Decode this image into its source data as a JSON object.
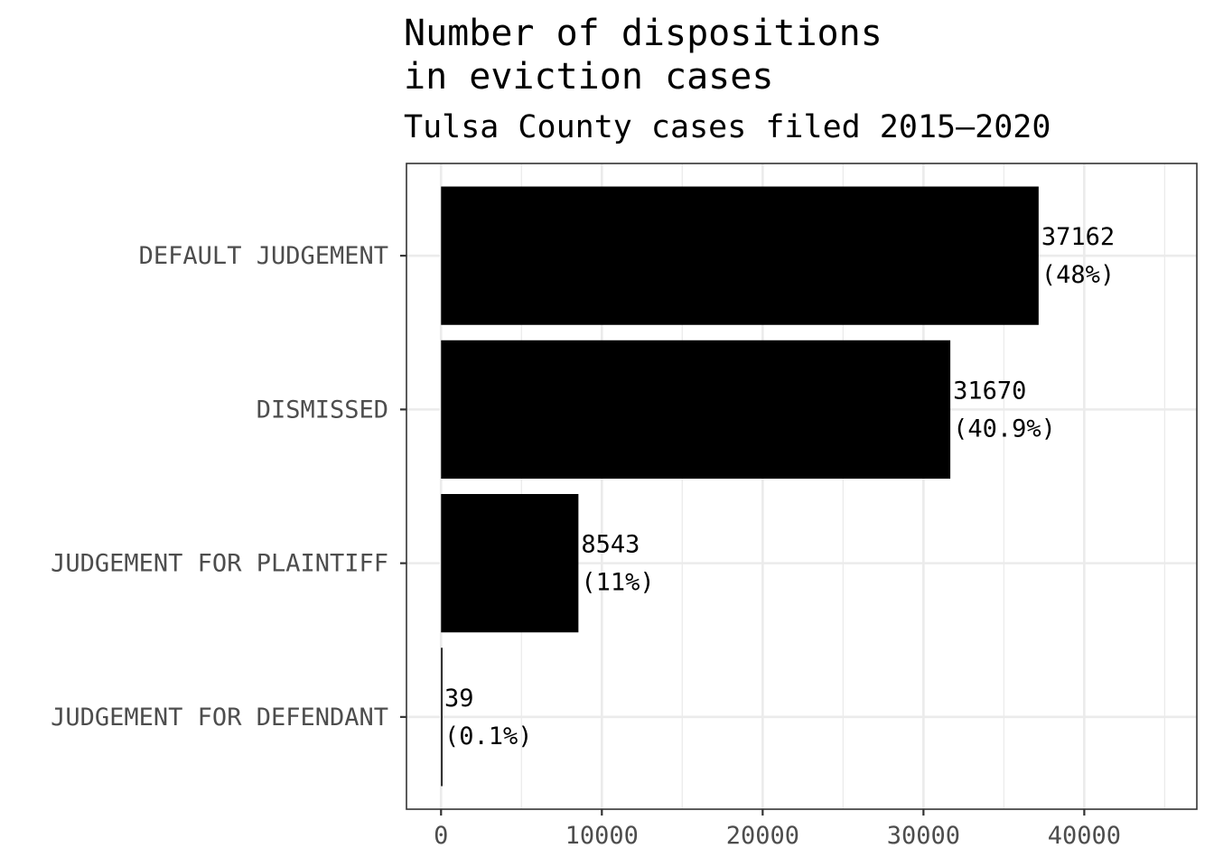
{
  "chart_data": {
    "type": "bar",
    "orientation": "horizontal",
    "title_lines": [
      "Number of dispositions",
      "in eviction cases"
    ],
    "subtitle": "Tulsa County cases filed 2015–2020",
    "xlabel": "",
    "ylabel": "",
    "categories": [
      "DEFAULT JUDGEMENT",
      "DISMISSED",
      "JUDGEMENT FOR PLAINTIFF",
      "JUDGEMENT FOR DEFENDANT"
    ],
    "values": [
      37162,
      31670,
      8543,
      39
    ],
    "value_labels": [
      "37162",
      "31670",
      "8543",
      "39"
    ],
    "percent_labels": [
      "(48%)",
      "(40.9%)",
      "(11%)",
      "(0.1%)"
    ],
    "xlim": [
      -2150,
      47000
    ],
    "xticks": [
      0,
      10000,
      20000,
      30000,
      40000
    ],
    "xtick_labels": [
      "0",
      "10000",
      "20000",
      "30000",
      "40000"
    ],
    "grid": true,
    "bar_color": "#000000",
    "grid_color": "#ebebeb",
    "panel_border_color": "#333333"
  }
}
